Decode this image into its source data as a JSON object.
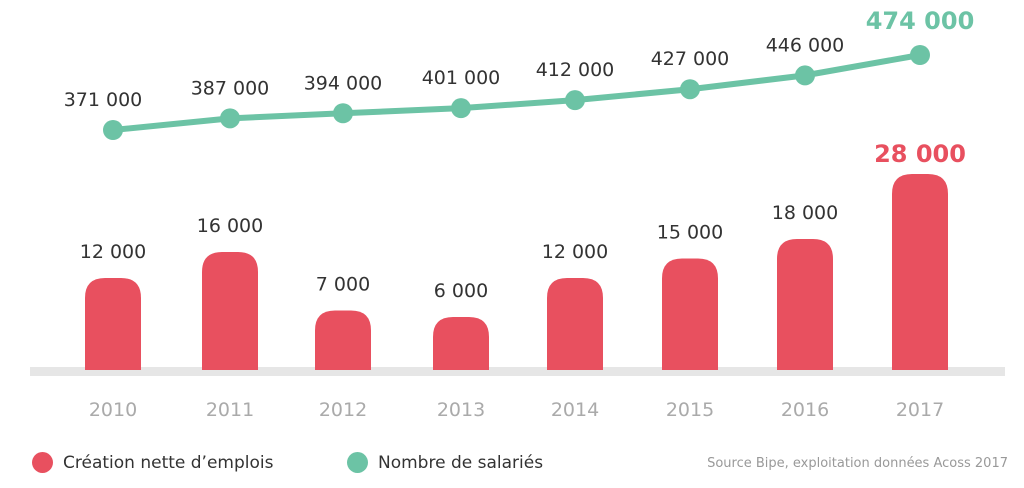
{
  "chart_data": {
    "type": "bar",
    "categories": [
      "2010",
      "2011",
      "2012",
      "2013",
      "2014",
      "2015",
      "2016",
      "2017"
    ],
    "series": [
      {
        "name": "Création nette d’emplois",
        "kind": "bar",
        "color": "#e8505f",
        "values": [
          12000,
          16000,
          7000,
          6000,
          12000,
          15000,
          18000,
          28000
        ],
        "labels": [
          "12 000",
          "16 000",
          "7 000",
          "6 000",
          "12 000",
          "15 000",
          "18 000",
          "28 000"
        ]
      },
      {
        "name": "Nombre de salariés",
        "kind": "line",
        "color": "#6cc3a5",
        "values": [
          371000,
          387000,
          394000,
          401000,
          412000,
          427000,
          446000,
          474000
        ],
        "labels": [
          "371 000",
          "387 000",
          "394 000",
          "401 000",
          "412 000",
          "427 000",
          "446 000",
          "474 000"
        ]
      }
    ],
    "highlight_last": true
  },
  "legend": {
    "bar": "Création nette d’emplois",
    "line": "Nombre de salariés"
  },
  "source": "Source Bipe, exploitation données Acoss 2017"
}
